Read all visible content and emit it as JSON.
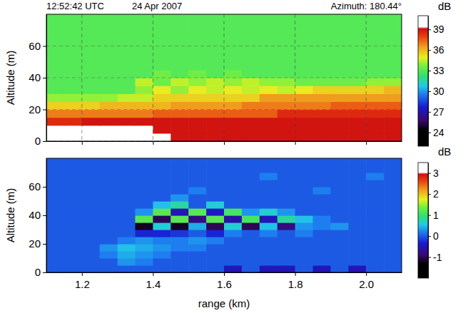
{
  "chart_data": [
    {
      "type": "heatmap",
      "annotations": [
        "12:52:42 UTC",
        "24 Apr 2007",
        "Azimuth: 180.44°"
      ],
      "y_label": "Altitude (m)",
      "x": [
        1.125,
        1.175,
        1.225,
        1.275,
        1.325,
        1.375,
        1.425,
        1.475,
        1.525,
        1.575,
        1.625,
        1.675,
        1.725,
        1.775,
        1.825,
        1.875,
        1.925,
        1.975,
        2.025,
        2.075
      ],
      "y": [
        2.5,
        7.5,
        12.5,
        17.5,
        22.5,
        27.5,
        32.5,
        37.5,
        42.5,
        47.5,
        52.5,
        57.5,
        62.5,
        67.5,
        72.5,
        77.5
      ],
      "z": [
        [
          40,
          40,
          40,
          40,
          40,
          40,
          40,
          39,
          39,
          39,
          39,
          39,
          39,
          39,
          39,
          39,
          39,
          39,
          39,
          39
        ],
        [
          40,
          40,
          40,
          40,
          40,
          40,
          39,
          39,
          39,
          39,
          39,
          39,
          39,
          39,
          39,
          39,
          39,
          39,
          39,
          39
        ],
        [
          38.5,
          38.5,
          39,
          39,
          39,
          39,
          39,
          39,
          39,
          39,
          39,
          39,
          39,
          39,
          39,
          39,
          39,
          39,
          39,
          39
        ],
        [
          37,
          37,
          37,
          37,
          37,
          37,
          37.5,
          37.5,
          37.5,
          37.5,
          37.5,
          37.5,
          37.5,
          38.5,
          38.5,
          38.5,
          38.5,
          38.5,
          38.5,
          38.5
        ],
        [
          35.5,
          35.5,
          35.5,
          36,
          36,
          36,
          36,
          36.5,
          36.5,
          36.5,
          36.5,
          37,
          37,
          37,
          37,
          37,
          37.5,
          37.5,
          37.5,
          37.5
        ],
        [
          34,
          34,
          34,
          34,
          34.5,
          34.5,
          35.5,
          35.5,
          35.5,
          35.5,
          35.5,
          35.5,
          36.5,
          36.5,
          36.5,
          36.5,
          36.5,
          36.5,
          36.5,
          36.5
        ],
        [
          33,
          33,
          33,
          33,
          33,
          34,
          35,
          34,
          35,
          34.5,
          35,
          34.5,
          35,
          34.5,
          35,
          35.5,
          35.5,
          35.5,
          35.5,
          36
        ],
        [
          33,
          33,
          33,
          33,
          33,
          34.5,
          33.5,
          34.5,
          34,
          34.5,
          34,
          34.5,
          34,
          34,
          33.5,
          33.5,
          33.5,
          33.5,
          34,
          34
        ],
        [
          33,
          33,
          33,
          33,
          33,
          33,
          33.5,
          33,
          33.5,
          33,
          33.5,
          33,
          33,
          33,
          33,
          33,
          33,
          33,
          33,
          33
        ],
        [
          33,
          33,
          33,
          33,
          33,
          33,
          33,
          33,
          33,
          33,
          33,
          33,
          33,
          33,
          33,
          33,
          33,
          33,
          33,
          33
        ],
        [
          33,
          33,
          33,
          33,
          33,
          33,
          33,
          33,
          33,
          33,
          33,
          33,
          33,
          33,
          33,
          33,
          33,
          33,
          33,
          33
        ],
        [
          33,
          33,
          33,
          33,
          33,
          33,
          33,
          33,
          33,
          33,
          33,
          33,
          33,
          33,
          33,
          33,
          33,
          33,
          33,
          33
        ],
        [
          33,
          33,
          33,
          33,
          33,
          33,
          33,
          33,
          33,
          33,
          33,
          33,
          33,
          33,
          33,
          33,
          33,
          33,
          33,
          33
        ],
        [
          33,
          33,
          33,
          33,
          33,
          33,
          33,
          33,
          33,
          33,
          33,
          33,
          33,
          33,
          33,
          33,
          33,
          33,
          33,
          33
        ],
        [
          33,
          33,
          33,
          33,
          33,
          33,
          33,
          33,
          33,
          33,
          33,
          33,
          33,
          33,
          33,
          33,
          33,
          33,
          33,
          33
        ],
        [
          33,
          33,
          33,
          33,
          33,
          33,
          33,
          33,
          33,
          33,
          33,
          33,
          33,
          33,
          33,
          33,
          33,
          33,
          33,
          33
        ]
      ],
      "xlim": [
        1.1,
        2.1
      ],
      "ylim": [
        0,
        80
      ],
      "xticks": [
        1.2,
        1.4,
        1.6,
        1.8,
        {
          "value": 2,
          "label": "2.0"
        }
      ],
      "yticks": [
        0,
        20,
        40,
        60
      ],
      "grid": true,
      "tick_labels": "y",
      "colorbar": {
        "label": "dB",
        "range": [
          22,
          41
        ],
        "ticks": [
          24,
          27,
          30,
          33,
          36,
          39
        ]
      }
    },
    {
      "type": "heatmap",
      "y_label": "Altitude (m)",
      "x_label": "range (km)",
      "x": [
        1.125,
        1.175,
        1.225,
        1.275,
        1.325,
        1.375,
        1.425,
        1.475,
        1.525,
        1.575,
        1.625,
        1.675,
        1.725,
        1.775,
        1.825,
        1.875,
        1.925,
        1.975,
        2.025,
        2.075
      ],
      "y": [
        2.5,
        7.5,
        12.5,
        17.5,
        22.5,
        27.5,
        32.5,
        37.5,
        42.5,
        47.5,
        52.5,
        57.5,
        62.5,
        67.5,
        72.5,
        77.5
      ],
      "z": [
        [
          0,
          0,
          0,
          0,
          0,
          0,
          0,
          0,
          0,
          0,
          -0.5,
          0,
          -0.5,
          -0.5,
          0,
          -0.5,
          0,
          -0.5,
          0,
          0
        ],
        [
          0,
          0,
          0,
          0,
          0.3,
          0.2,
          0,
          0,
          0,
          0,
          0,
          0,
          0,
          0,
          0,
          0,
          0,
          0,
          0,
          0
        ],
        [
          0,
          0,
          0,
          0.2,
          0.4,
          0.3,
          0.2,
          0,
          0,
          0,
          0,
          0,
          0,
          0,
          0,
          0,
          0,
          0,
          0,
          0
        ],
        [
          0,
          0,
          0,
          0.3,
          0.5,
          0.4,
          0.3,
          0.2,
          0.2,
          0,
          0,
          0,
          0,
          0,
          0,
          0,
          0,
          0,
          0,
          0
        ],
        [
          0,
          0,
          0,
          0,
          0.2,
          0.3,
          0.2,
          0.2,
          0.3,
          0.2,
          0,
          0,
          0,
          0,
          0,
          0,
          0,
          0,
          0,
          0
        ],
        [
          0,
          0,
          0,
          0,
          0,
          -0.3,
          -0.3,
          -0.2,
          0,
          -0.3,
          0.2,
          0,
          0.2,
          0,
          0.2,
          0,
          0,
          0,
          0,
          0
        ],
        [
          0,
          0,
          0,
          0,
          0,
          -1.2,
          0.6,
          -1.2,
          0.4,
          -1,
          0.6,
          -1,
          0.5,
          -0.8,
          0.3,
          0.2,
          0.3,
          0,
          0,
          0
        ],
        [
          0,
          0,
          0,
          0,
          0,
          1.2,
          -1,
          1.2,
          -0.8,
          1.2,
          -0.6,
          1.1,
          -0.5,
          0.8,
          0.5,
          0.2,
          0,
          0,
          0,
          0
        ],
        [
          0,
          0,
          0,
          0,
          0,
          0.3,
          1.2,
          -0.5,
          1.2,
          -0.4,
          1.1,
          0.3,
          0.6,
          0.3,
          0,
          0,
          0,
          0,
          0,
          0
        ],
        [
          0,
          0,
          0,
          0,
          0,
          0,
          0.5,
          0.8,
          0,
          0.6,
          0,
          0,
          0,
          0,
          0,
          0,
          0,
          0,
          0,
          0
        ],
        [
          0,
          0,
          0,
          0,
          0,
          0,
          0,
          0.3,
          0,
          0,
          0,
          0,
          0,
          0,
          0,
          0,
          0,
          0,
          0,
          0
        ],
        [
          0,
          0,
          0,
          0,
          0,
          0,
          0,
          0,
          0.2,
          0,
          0,
          0,
          0,
          0,
          0,
          0.2,
          0,
          0,
          0,
          0
        ],
        [
          0,
          0,
          0,
          0,
          0,
          0,
          0,
          0,
          0,
          0,
          0,
          0,
          0,
          0,
          0,
          0,
          0,
          0,
          0,
          0
        ],
        [
          0,
          0,
          0,
          0,
          0,
          0,
          0,
          0,
          0,
          0,
          0,
          0,
          0.2,
          0,
          0,
          0,
          0,
          0,
          0.2,
          0
        ],
        [
          0,
          0,
          0,
          0,
          0,
          0,
          0,
          0,
          0,
          0,
          0,
          0,
          0,
          0,
          0,
          0,
          0,
          0,
          0,
          0
        ],
        [
          0,
          0,
          0,
          0,
          0,
          0,
          0,
          0,
          0,
          0,
          0,
          0,
          0,
          0,
          0,
          0,
          0,
          0,
          0,
          0
        ]
      ],
      "xlim": [
        1.1,
        2.1
      ],
      "ylim": [
        0,
        80
      ],
      "xticks": [
        1.2,
        1.4,
        1.6,
        1.8,
        {
          "value": 2,
          "label": "2.0"
        }
      ],
      "yticks": [
        0,
        20,
        40,
        60
      ],
      "grid": false,
      "colorbar": {
        "label": "dB",
        "range": [
          -2,
          3.5
        ],
        "ticks": [
          -1,
          0,
          1,
          2,
          3
        ]
      }
    }
  ]
}
